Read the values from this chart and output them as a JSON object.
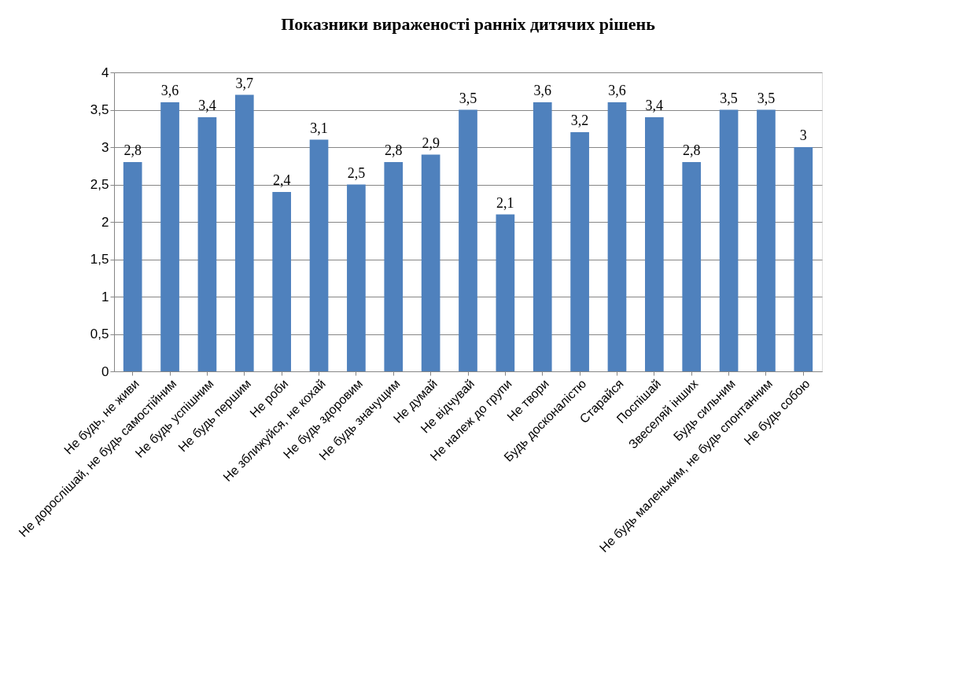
{
  "chart_data": {
    "type": "bar",
    "title": "Показники вираженості ранніх дитячих рішень",
    "categories": [
      "Не будь, не живи",
      "Не дорослішай, не будь самостійним",
      "Не будь успішним",
      "Не будь першим",
      "Не роби",
      "Не зближуйся, не кохай",
      "Не будь здоровим",
      "Не будь значущим",
      "Не думай",
      "Не відчувай",
      "Не належ до групи",
      "Не твори",
      "Будь досконалістю",
      "Старайся",
      "Поспішай",
      "Звеселяй інших",
      "Будь сильним",
      "Не будь маленьким, не будь спонтанним",
      "Не будь собою"
    ],
    "values": [
      2.8,
      3.6,
      3.4,
      3.7,
      2.4,
      3.1,
      2.5,
      2.8,
      2.9,
      3.5,
      2.1,
      3.6,
      3.2,
      3.6,
      3.4,
      2.8,
      3.5,
      3.5,
      3
    ],
    "value_labels": [
      "2,8",
      "3,6",
      "3,4",
      "3,7",
      "2,4",
      "3,1",
      "2,5",
      "2,8",
      "2,9",
      "3,5",
      "2,1",
      "3,6",
      "3,2",
      "3,6",
      "3,4",
      "2,8",
      "3,5",
      "3,5",
      "3"
    ],
    "color": "#4f81bd",
    "ylim": [
      0,
      4
    ],
    "yticks": [
      0,
      {
        "value": 0.5,
        "label": "0,5"
      },
      1,
      {
        "value": 1.5,
        "label": "1,5"
      },
      2,
      {
        "value": 2.5,
        "label": "2,5"
      },
      3,
      {
        "value": 3.5,
        "label": "3,5"
      },
      4
    ],
    "grid": "y"
  }
}
